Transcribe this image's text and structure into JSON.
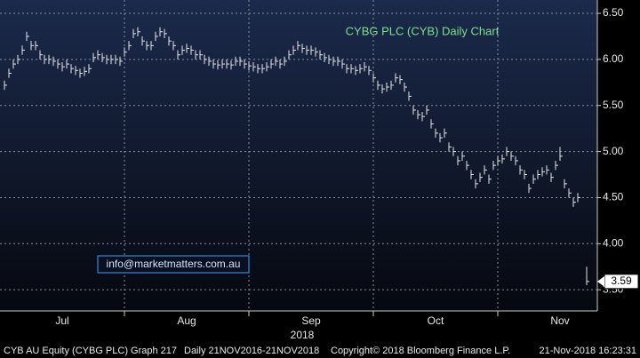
{
  "chart_data": {
    "type": "ohlc",
    "title": "CYBG PLC (CYB) Daily Chart",
    "watermark": "info@marketmatters.com.au",
    "x_sublabel": "2018",
    "footer": [
      "CYB AU Equity (CYBG PLC) Graph 217",
      "Daily 21NOV2016-21NOV2018",
      "Copyright© 2018 Bloomberg Finance L.P.",
      "21-Nov-2018 16:23:31"
    ],
    "color": "#e6e6e6",
    "title_color": "#7ee08a",
    "grid": true,
    "ylim": [
      3.27,
      6.645
    ],
    "yticks": [
      {
        "value": 3.5,
        "label": "3.50"
      },
      {
        "value": 4,
        "label": "4.00"
      },
      {
        "value": 4.5,
        "label": "4.50"
      },
      {
        "value": 5,
        "label": "5.00"
      },
      {
        "value": 5.5,
        "label": "5.50"
      },
      {
        "value": 6,
        "label": "6.00"
      },
      {
        "value": 6.5,
        "label": "6.50"
      }
    ],
    "categories": [
      null,
      null,
      null,
      null,
      null,
      null,
      null,
      null,
      null,
      null,
      null,
      null,
      null,
      "Jul",
      null,
      null,
      null,
      null,
      null,
      null,
      null,
      null,
      null,
      null,
      null,
      null,
      null,
      null,
      null,
      null,
      null,
      null,
      null,
      null,
      null,
      null,
      null,
      null,
      null,
      null,
      null,
      "Aug",
      null,
      null,
      null,
      null,
      null,
      null,
      null,
      null,
      null,
      null,
      null,
      null,
      null,
      null,
      null,
      null,
      null,
      null,
      null,
      null,
      null,
      null,
      null,
      null,
      null,
      null,
      null,
      "Sep",
      null,
      null,
      null,
      null,
      null,
      null,
      null,
      null,
      null,
      null,
      null,
      null,
      null,
      null,
      null,
      null,
      null,
      null,
      null,
      null,
      null,
      null,
      null,
      null,
      null,
      null,
      null,
      "Oct",
      null,
      null,
      null,
      null,
      null,
      null,
      null,
      null,
      null,
      null,
      null,
      null,
      null,
      null,
      null,
      null,
      null,
      null,
      null,
      null,
      null,
      null,
      null,
      null,
      null,
      null,
      null,
      "Nov",
      null,
      null,
      null,
      null,
      null,
      null
    ],
    "high": [
      5.77,
      5.9,
      6.0,
      6.05,
      6.15,
      6.3,
      6.2,
      6.2,
      6.1,
      6.05,
      6.05,
      6.03,
      6.0,
      5.97,
      6.0,
      5.95,
      5.93,
      5.9,
      5.92,
      5.95,
      6.07,
      6.1,
      6.07,
      6.05,
      6.05,
      6.05,
      6.03,
      6.13,
      6.2,
      6.33,
      6.35,
      6.25,
      6.2,
      6.2,
      6.3,
      6.35,
      6.33,
      6.25,
      6.2,
      6.1,
      6.15,
      6.17,
      6.15,
      6.1,
      6.1,
      6.05,
      6.03,
      6.0,
      5.99,
      6.0,
      6.0,
      5.99,
      6.03,
      6.03,
      6.0,
      5.98,
      5.97,
      5.95,
      5.95,
      5.97,
      6.0,
      6.03,
      6.0,
      6.03,
      6.1,
      6.15,
      6.2,
      6.17,
      6.15,
      6.15,
      6.13,
      6.1,
      6.07,
      6.05,
      6.03,
      6.03,
      6.0,
      5.95,
      5.95,
      5.93,
      5.95,
      5.97,
      5.93,
      5.85,
      5.77,
      5.73,
      5.75,
      5.77,
      5.85,
      5.83,
      5.75,
      5.65,
      5.5,
      5.45,
      5.43,
      5.5,
      5.35,
      5.25,
      5.2,
      5.25,
      5.1,
      5.05,
      4.95,
      5.0,
      4.9,
      4.8,
      4.7,
      4.77,
      4.85,
      4.75,
      4.9,
      4.95,
      4.97,
      5.05,
      5.0,
      4.95,
      4.85,
      4.8,
      4.65,
      4.75,
      4.8,
      4.83,
      4.85,
      4.77,
      4.9,
      5.05,
      4.7,
      4.6,
      4.5,
      4.55,
      null,
      3.75
    ],
    "low": [
      5.67,
      5.8,
      5.9,
      5.95,
      6.05,
      6.2,
      6.1,
      6.1,
      6.0,
      5.95,
      5.95,
      5.93,
      5.9,
      5.87,
      5.9,
      5.85,
      5.83,
      5.8,
      5.82,
      5.85,
      5.97,
      6.0,
      5.97,
      5.95,
      5.95,
      5.95,
      5.93,
      6.03,
      6.1,
      6.23,
      6.25,
      6.15,
      6.1,
      6.1,
      6.2,
      6.25,
      6.23,
      6.15,
      6.1,
      6.0,
      6.05,
      6.07,
      6.05,
      6.0,
      6.0,
      5.95,
      5.93,
      5.9,
      5.89,
      5.9,
      5.9,
      5.89,
      5.93,
      5.93,
      5.9,
      5.88,
      5.87,
      5.85,
      5.85,
      5.87,
      5.9,
      5.93,
      5.9,
      5.93,
      6.0,
      6.05,
      6.1,
      6.07,
      6.05,
      6.05,
      6.03,
      6.0,
      5.97,
      5.95,
      5.93,
      5.93,
      5.9,
      5.85,
      5.85,
      5.83,
      5.85,
      5.87,
      5.83,
      5.75,
      5.67,
      5.63,
      5.65,
      5.67,
      5.75,
      5.73,
      5.65,
      5.55,
      5.4,
      5.35,
      5.33,
      5.4,
      5.25,
      5.15,
      5.1,
      5.15,
      5.0,
      4.95,
      4.85,
      4.9,
      4.8,
      4.7,
      4.6,
      4.67,
      4.75,
      4.65,
      4.8,
      4.85,
      4.87,
      4.95,
      4.9,
      4.85,
      4.75,
      4.7,
      4.55,
      4.65,
      4.7,
      4.73,
      4.75,
      4.67,
      4.8,
      4.9,
      4.6,
      4.5,
      4.4,
      4.45,
      null,
      3.55
    ],
    "close": [
      5.72,
      5.85,
      5.95,
      6.0,
      6.1,
      6.25,
      6.15,
      6.15,
      6.05,
      6.0,
      6.0,
      5.98,
      5.95,
      5.92,
      5.95,
      5.9,
      5.88,
      5.85,
      5.87,
      5.9,
      6.02,
      6.05,
      6.02,
      6.0,
      6.0,
      6.0,
      5.98,
      6.08,
      6.15,
      6.28,
      6.3,
      6.2,
      6.15,
      6.15,
      6.25,
      6.3,
      6.28,
      6.2,
      6.15,
      6.05,
      6.1,
      6.12,
      6.1,
      6.05,
      6.05,
      6.0,
      5.98,
      5.95,
      5.94,
      5.95,
      5.95,
      5.94,
      5.98,
      5.98,
      5.95,
      5.93,
      5.92,
      5.9,
      5.9,
      5.92,
      5.95,
      5.98,
      5.95,
      5.98,
      6.05,
      6.1,
      6.15,
      6.12,
      6.1,
      6.1,
      6.08,
      6.05,
      6.02,
      6.0,
      5.98,
      5.98,
      5.95,
      5.9,
      5.9,
      5.88,
      5.9,
      5.92,
      5.88,
      5.8,
      5.72,
      5.68,
      5.7,
      5.72,
      5.8,
      5.78,
      5.7,
      5.6,
      5.45,
      5.4,
      5.38,
      5.45,
      5.3,
      5.2,
      5.15,
      5.2,
      5.05,
      5.0,
      4.9,
      4.95,
      4.85,
      4.75,
      4.65,
      4.72,
      4.8,
      4.7,
      4.85,
      4.9,
      4.92,
      5.0,
      4.95,
      4.9,
      4.8,
      4.75,
      4.6,
      4.7,
      4.75,
      4.78,
      4.8,
      4.72,
      4.85,
      4.95,
      4.65,
      4.55,
      4.45,
      4.5,
      null,
      3.59
    ]
  }
}
